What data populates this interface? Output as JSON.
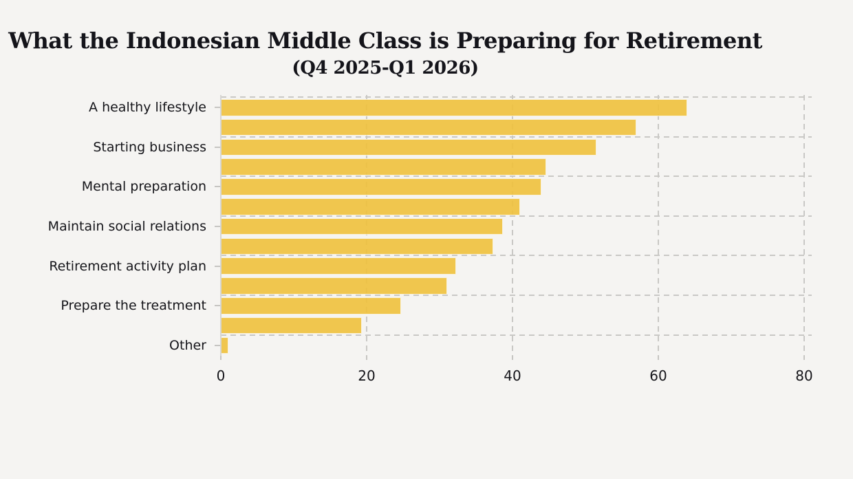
{
  "page": {
    "background": "#F5F4F2"
  },
  "chart_data": {
    "type": "bar",
    "orientation": "horizontal",
    "title": "What the Indonesian Middle Class is Preparing for Retirement",
    "subtitle": "(Q4 2025-Q1 2026)",
    "xlabel": "",
    "ylabel": "",
    "xlim": [
      0,
      80
    ],
    "xticks": [
      0,
      20,
      40,
      60,
      80
    ],
    "grid": {
      "style": "dashed",
      "vertical_at_xticks": true,
      "horizontal_between_label_groups": true
    },
    "legend": null,
    "bars": [
      {
        "label": "A healthy lifestyle",
        "value": 64
      },
      {
        "label": "",
        "value": 57
      },
      {
        "label": "Starting business",
        "value": 51.5
      },
      {
        "label": "",
        "value": 44.6
      },
      {
        "label": "Mental preparation",
        "value": 44
      },
      {
        "label": "",
        "value": 41
      },
      {
        "label": "Maintain social relations",
        "value": 38.7
      },
      {
        "label": "",
        "value": 37.4
      },
      {
        "label": "Retirement activity plan",
        "value": 32.3
      },
      {
        "label": "",
        "value": 31
      },
      {
        "label": "Prepare the treatment",
        "value": 24.7
      },
      {
        "label": "",
        "value": 19.3
      },
      {
        "label": "Other",
        "value": 1
      }
    ],
    "colors": {
      "bar": "rgba(239,193,60,0.9)",
      "bar_edge": "#F9F2DB",
      "grid": "#C9C8C5",
      "axis": "#D6D5D2",
      "background": "#F5F4F2",
      "text": "#15151A"
    }
  }
}
